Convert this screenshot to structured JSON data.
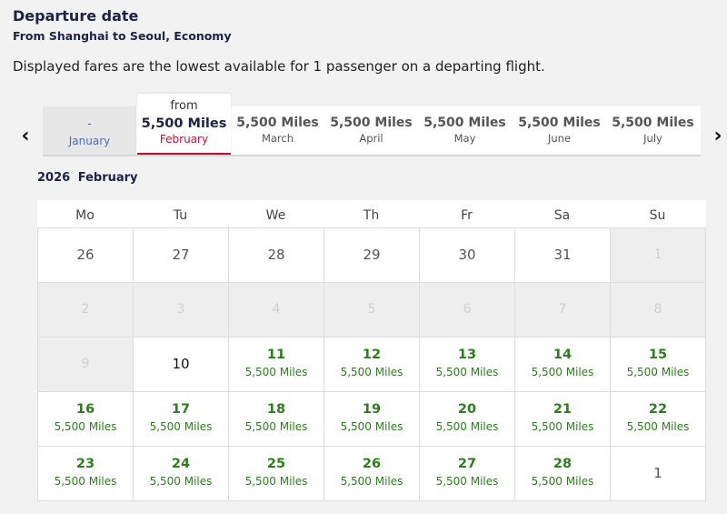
{
  "header": {
    "title": "Departure date",
    "subtitle": "From Shanghai to Seoul, Economy",
    "note": "Displayed fares are the lowest available for 1 passenger on a departing flight."
  },
  "nav": {
    "prev": "‹",
    "next": "›",
    "prev_icon": "chevron-left-icon",
    "next_icon": "chevron-right-icon"
  },
  "months": [
    {
      "miles": "-",
      "name": "January"
    },
    {
      "prefix": "from",
      "miles": "5,500 Miles",
      "name": "February",
      "selected": true
    },
    {
      "miles": "5,500 Miles",
      "name": "March"
    },
    {
      "miles": "5,500 Miles",
      "name": "April"
    },
    {
      "miles": "5,500 Miles",
      "name": "May"
    },
    {
      "miles": "5,500 Miles",
      "name": "June"
    },
    {
      "miles": "5,500 Miles",
      "name": "July"
    }
  ],
  "calendar": {
    "year": "2026",
    "month": "February",
    "weekdays": [
      "Mo",
      "Tu",
      "We",
      "Th",
      "Fr",
      "Sa",
      "Su"
    ],
    "weeks": [
      [
        {
          "d": "26",
          "s": "plain"
        },
        {
          "d": "27",
          "s": "plain"
        },
        {
          "d": "28",
          "s": "plain"
        },
        {
          "d": "29",
          "s": "plain"
        },
        {
          "d": "30",
          "s": "plain"
        },
        {
          "d": "31",
          "s": "plain"
        },
        {
          "d": "1",
          "s": "disabled"
        }
      ],
      [
        {
          "d": "2",
          "s": "disabled"
        },
        {
          "d": "3",
          "s": "disabled"
        },
        {
          "d": "4",
          "s": "disabled"
        },
        {
          "d": "5",
          "s": "disabled"
        },
        {
          "d": "6",
          "s": "disabled"
        },
        {
          "d": "7",
          "s": "disabled"
        },
        {
          "d": "8",
          "s": "disabled"
        }
      ],
      [
        {
          "d": "9",
          "s": "disabled"
        },
        {
          "d": "10",
          "s": "today"
        },
        {
          "d": "11",
          "s": "avail",
          "m": "5,500 Miles"
        },
        {
          "d": "12",
          "s": "avail",
          "m": "5,500 Miles"
        },
        {
          "d": "13",
          "s": "avail",
          "m": "5,500 Miles"
        },
        {
          "d": "14",
          "s": "avail",
          "m": "5,500 Miles"
        },
        {
          "d": "15",
          "s": "avail",
          "m": "5,500 Miles"
        }
      ],
      [
        {
          "d": "16",
          "s": "avail",
          "m": "5,500 Miles"
        },
        {
          "d": "17",
          "s": "avail",
          "m": "5,500 Miles"
        },
        {
          "d": "18",
          "s": "avail",
          "m": "5,500 Miles"
        },
        {
          "d": "19",
          "s": "avail",
          "m": "5,500 Miles"
        },
        {
          "d": "20",
          "s": "avail",
          "m": "5,500 Miles"
        },
        {
          "d": "21",
          "s": "avail",
          "m": "5,500 Miles"
        },
        {
          "d": "22",
          "s": "avail",
          "m": "5,500 Miles"
        }
      ],
      [
        {
          "d": "23",
          "s": "avail",
          "m": "5,500 Miles"
        },
        {
          "d": "24",
          "s": "avail",
          "m": "5,500 Miles"
        },
        {
          "d": "25",
          "s": "avail",
          "m": "5,500 Miles"
        },
        {
          "d": "26",
          "s": "avail",
          "m": "5,500 Miles"
        },
        {
          "d": "27",
          "s": "avail",
          "m": "5,500 Miles"
        },
        {
          "d": "28",
          "s": "avail",
          "m": "5,500 Miles"
        },
        {
          "d": "1",
          "s": "nextmonth"
        }
      ]
    ]
  },
  "colors": {
    "available": "#2e7d1f",
    "selected_accent": "#c8102e",
    "heading": "#1b2246"
  }
}
